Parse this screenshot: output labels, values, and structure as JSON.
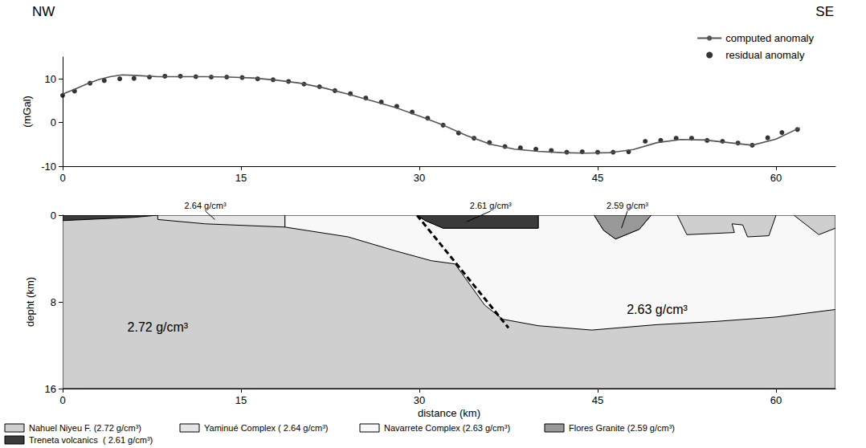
{
  "chart_data": [
    {
      "type": "line",
      "corner_labels": {
        "left": "NW",
        "right": "SE"
      },
      "y_label": "(mGal)",
      "xlim": [
        0,
        65
      ],
      "xticks": [
        0,
        15,
        30,
        45,
        60
      ],
      "ylim": [
        -10,
        15
      ],
      "yticks": [
        -10,
        0,
        10
      ],
      "grid": false,
      "legend": "upper right",
      "series": [
        {
          "name": "computed anomaly",
          "type": "line",
          "color": "#555555",
          "marker": "none",
          "line_style": "solid",
          "x": [
            0,
            1,
            2,
            3,
            4,
            5,
            6,
            8,
            10,
            12,
            14,
            16,
            18,
            20,
            22,
            24,
            26,
            28,
            30,
            32,
            34,
            36,
            38,
            40,
            42,
            44,
            46,
            48,
            50,
            52,
            54,
            56,
            58,
            60,
            62
          ],
          "values": [
            6.5,
            7.6,
            8.8,
            9.8,
            10.5,
            10.9,
            10.8,
            10.5,
            10.5,
            10.5,
            10.4,
            10.2,
            9.7,
            9.0,
            7.9,
            6.5,
            5.0,
            3.4,
            1.5,
            -0.6,
            -3.0,
            -5.0,
            -6.1,
            -6.6,
            -6.9,
            -7.0,
            -6.9,
            -6.2,
            -4.6,
            -3.9,
            -4.0,
            -4.6,
            -5.2,
            -3.8,
            -1.2
          ]
        },
        {
          "name": "residual anomaly",
          "type": "scatter",
          "color": "#000000",
          "marker": "circle",
          "x": [
            0,
            1,
            2.3,
            3.5,
            4.8,
            6,
            7.3,
            8.6,
            9.9,
            11.2,
            12.5,
            13.8,
            15.1,
            16.4,
            17.7,
            19,
            20.3,
            21.6,
            22.9,
            24.2,
            25.5,
            26.8,
            28.1,
            29.4,
            30.7,
            32,
            33.3,
            34.6,
            35.9,
            37.2,
            38.5,
            39.8,
            41.1,
            42.4,
            43.7,
            45,
            46.3,
            47.6,
            49,
            50.3,
            51.6,
            52.9,
            54.2,
            55.5,
            56.8,
            58,
            59.3,
            60.5,
            61.8
          ],
          "values": [
            6.2,
            7.2,
            9.0,
            9.6,
            10.0,
            10.1,
            10.4,
            10.6,
            10.6,
            10.5,
            10.4,
            10.4,
            10.3,
            10.0,
            9.8,
            9.4,
            8.8,
            8.2,
            7.3,
            6.6,
            5.6,
            4.7,
            3.7,
            2.4,
            1.0,
            -0.6,
            -2.4,
            -3.6,
            -4.6,
            -5.5,
            -5.8,
            -6.1,
            -6.4,
            -6.8,
            -6.7,
            -6.8,
            -6.8,
            -6.7,
            -4.3,
            -4.1,
            -3.6,
            -3.6,
            -4.1,
            -4.3,
            -4.7,
            -5.2,
            -3.5,
            -2.3,
            -1.6
          ]
        }
      ]
    },
    {
      "type": "cross_section",
      "x_label": "distance (km)",
      "y_label": "depht (km)",
      "xlim": [
        0,
        65
      ],
      "xticks": [
        0,
        15,
        30,
        45,
        60
      ],
      "ylim": [
        0,
        16
      ],
      "yticks": [
        0,
        8,
        16
      ],
      "grid": false,
      "legend": "bottom",
      "units": [
        {
          "name": "Nahuel Niyeu F.",
          "legend_label": "Nahuel Niyeu F. (2.72 g/cm³)",
          "color": "#cfcfcf",
          "polygons": [
            [
              [
                0,
                0
              ],
              [
                65,
                0
              ],
              [
                65,
                16
              ],
              [
                0,
                16
              ]
            ]
          ]
        },
        {
          "name": "Yaminué Complex",
          "legend_label": "Yaminué Complex ( 2.64 g/cm³)",
          "color": "#e4e4e4",
          "polygons": [
            [
              [
                8,
                0
              ],
              [
                18.7,
                0
              ],
              [
                18.7,
                1.1
              ],
              [
                12,
                0.8
              ],
              [
                8,
                0.4
              ]
            ]
          ]
        },
        {
          "name": "Navarrete Complex",
          "legend_label": "Navarrete Complex (2.63 g/cm³)",
          "color": "#f8f8f8",
          "polygons": [
            [
              [
                18.7,
                0
              ],
              [
                18.7,
                1.1
              ],
              [
                24,
                2.0
              ],
              [
                28,
                3.3
              ],
              [
                31,
                4.2
              ],
              [
                33,
                4.5
              ],
              [
                35.5,
                8.3
              ],
              [
                37,
                9.6
              ],
              [
                40,
                10.2
              ],
              [
                44.5,
                10.6
              ],
              [
                50,
                10.1
              ],
              [
                55,
                9.8
              ],
              [
                60,
                9.4
              ],
              [
                65,
                8.7
              ],
              [
                65,
                1.2
              ],
              [
                63.6,
                1.8
              ],
              [
                61.5,
                0
              ],
              [
                60,
                0
              ],
              [
                59.4,
                1.9
              ],
              [
                57.6,
                2.0
              ],
              [
                57.2,
                0.9
              ],
              [
                56.3,
                0.8
              ],
              [
                56.5,
                1.6
              ],
              [
                52.5,
                1.8
              ],
              [
                51.7,
                0
              ],
              [
                49.5,
                0
              ],
              [
                48.5,
                1.3
              ],
              [
                46.5,
                2.2
              ],
              [
                45.5,
                1.4
              ],
              [
                44.7,
                0
              ],
              [
                40,
                0
              ],
              [
                40,
                1.2
              ],
              [
                32,
                1.2
              ],
              [
                30.5,
                0.5
              ],
              [
                29.8,
                0
              ]
            ]
          ]
        },
        {
          "name": "Flores Granite",
          "legend_label": "Flores Granite (2.59 g/cm³)",
          "color": "#999999",
          "polygons": [
            [
              [
                44.7,
                0
              ],
              [
                49.5,
                0
              ],
              [
                48.5,
                1.3
              ],
              [
                46.5,
                2.2
              ],
              [
                45.5,
                1.4
              ]
            ]
          ]
        },
        {
          "name": "Treneta volcanics",
          "legend_label": "Treneta volcanics  ( 2.61 g/cm³)",
          "color": "#3a3a3a",
          "polygons": [
            [
              [
                0,
                0
              ],
              [
                8,
                0
              ],
              [
                6,
                0.2
              ],
              [
                0,
                0.5
              ]
            ],
            [
              [
                29.8,
                0
              ],
              [
                40,
                0
              ],
              [
                40,
                1.2
              ],
              [
                32,
                1.2
              ],
              [
                30.5,
                0.5
              ]
            ]
          ]
        }
      ],
      "fault": {
        "line_style": "dashed",
        "x": [
          29.8,
          37.5
        ],
        "y": [
          0,
          10.4
        ]
      },
      "annotations": [
        {
          "text": "2.72 g/cm³",
          "x": 8,
          "y": 10.3
        },
        {
          "text": "2.63 g/cm³",
          "x": 50,
          "y": 8.7
        },
        {
          "text": "2.64 g/cm³",
          "x": 12,
          "y": -0.9,
          "pointer": [
            12.8,
            0.4
          ]
        },
        {
          "text": "2.61 g/cm³",
          "x": 36,
          "y": -0.9,
          "pointer": [
            34,
            0.6
          ]
        },
        {
          "text": "2.59 g/cm³",
          "x": 47.5,
          "y": -0.9,
          "pointer": [
            47,
            1.2
          ]
        }
      ]
    }
  ]
}
